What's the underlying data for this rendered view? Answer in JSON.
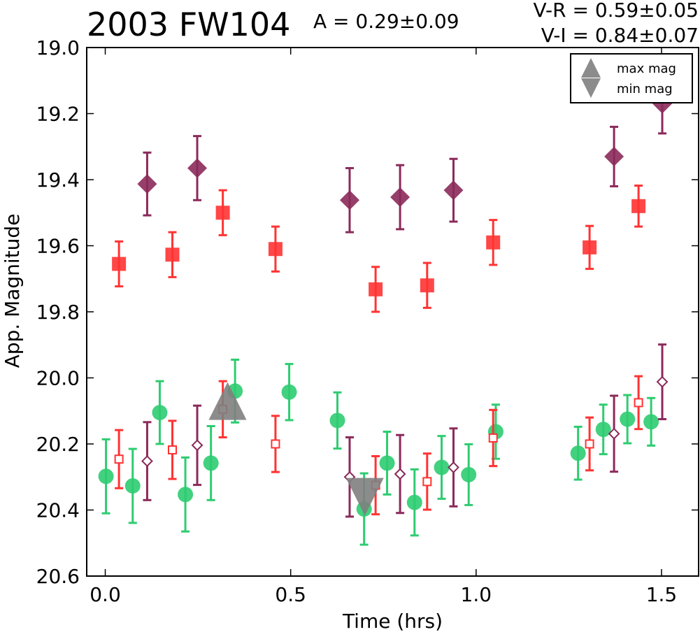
{
  "chart_data": {
    "type": "scatter",
    "title": "2003 FW104",
    "amplitude_label": "A  = 0.29±0.09",
    "colors_label": [
      "V-R = 0.59±0.05",
      "V-I  = 0.84±0.07"
    ],
    "xlabel": "Time (hrs)",
    "ylabel": "App. Magnitude",
    "xlim": [
      -0.05,
      1.6
    ],
    "ylim": [
      19.0,
      20.6
    ],
    "y_inverted": true,
    "grid": false,
    "xticks": [
      0.0,
      0.5,
      1.0,
      1.5
    ],
    "xtick_labels": [
      "0.0",
      "0.5",
      "1.0",
      "1.5"
    ],
    "yticks": [
      19.0,
      19.2,
      19.4,
      19.6,
      19.8,
      20.0,
      20.2,
      20.4,
      20.6
    ],
    "ytick_labels": [
      "19.0",
      "19.2",
      "19.4",
      "19.6",
      "19.8",
      "20.0",
      "20.2",
      "20.4",
      "20.6"
    ],
    "legend": {
      "placement": "top-right",
      "entries": [
        {
          "label": "max mag",
          "marker": "triangle-up",
          "color": "#7f7f7f"
        },
        {
          "label": "min mag",
          "marker": "triangle-down",
          "color": "#7f7f7f"
        }
      ]
    },
    "series": [
      {
        "marker": "square",
        "filled": true,
        "color": "#ff3333",
        "points": [
          {
            "x": 0.037,
            "y": 19.655,
            "err": 0.068
          },
          {
            "x": 0.181,
            "y": 19.627,
            "err": 0.068
          },
          {
            "x": 0.317,
            "y": 19.5,
            "err": 0.068
          },
          {
            "x": 0.459,
            "y": 19.61,
            "err": 0.068
          },
          {
            "x": 0.729,
            "y": 19.732,
            "err": 0.068
          },
          {
            "x": 0.868,
            "y": 19.72,
            "err": 0.068
          },
          {
            "x": 1.046,
            "y": 19.59,
            "err": 0.068
          },
          {
            "x": 1.306,
            "y": 19.605,
            "err": 0.065
          },
          {
            "x": 1.438,
            "y": 19.48,
            "err": 0.062
          }
        ]
      },
      {
        "marker": "diamond",
        "filled": true,
        "color": "#8b2a5a",
        "points": [
          {
            "x": 0.113,
            "y": 19.413,
            "err": 0.095
          },
          {
            "x": 0.248,
            "y": 19.365,
            "err": 0.097
          },
          {
            "x": 0.659,
            "y": 19.462,
            "err": 0.097
          },
          {
            "x": 0.795,
            "y": 19.453,
            "err": 0.097
          },
          {
            "x": 0.939,
            "y": 19.432,
            "err": 0.095
          },
          {
            "x": 1.372,
            "y": 19.33,
            "err": 0.09
          },
          {
            "x": 1.502,
            "y": 19.17,
            "err": 0.09
          }
        ]
      },
      {
        "marker": "circle",
        "filled": true,
        "color": "#2ecc71",
        "points": [
          {
            "x": 0.002,
            "y": 20.298,
            "err": 0.112
          },
          {
            "x": 0.074,
            "y": 20.327,
            "err": 0.112
          },
          {
            "x": 0.147,
            "y": 20.105,
            "err": 0.095
          },
          {
            "x": 0.216,
            "y": 20.353,
            "err": 0.112
          },
          {
            "x": 0.285,
            "y": 20.258,
            "err": 0.112
          },
          {
            "x": 0.35,
            "y": 20.04,
            "err": 0.095
          },
          {
            "x": 0.496,
            "y": 20.043,
            "err": 0.085
          },
          {
            "x": 0.626,
            "y": 20.129,
            "err": 0.085
          },
          {
            "x": 0.698,
            "y": 20.397,
            "err": 0.108
          },
          {
            "x": 0.76,
            "y": 20.258,
            "err": 0.095
          },
          {
            "x": 0.834,
            "y": 20.377,
            "err": 0.1
          },
          {
            "x": 0.907,
            "y": 20.271,
            "err": 0.095
          },
          {
            "x": 0.98,
            "y": 20.293,
            "err": 0.092
          },
          {
            "x": 1.053,
            "y": 20.163,
            "err": 0.082
          },
          {
            "x": 1.275,
            "y": 20.228,
            "err": 0.08
          },
          {
            "x": 1.343,
            "y": 20.156,
            "err": 0.075
          },
          {
            "x": 1.408,
            "y": 20.125,
            "err": 0.073
          },
          {
            "x": 1.472,
            "y": 20.133,
            "err": 0.072
          }
        ]
      },
      {
        "marker": "square",
        "filled": false,
        "color": "#ff3333",
        "points": [
          {
            "x": 0.037,
            "y": 20.246,
            "err": 0.088
          },
          {
            "x": 0.181,
            "y": 20.218,
            "err": 0.088
          },
          {
            "x": 0.317,
            "y": 20.095,
            "err": 0.085
          },
          {
            "x": 0.459,
            "y": 20.2,
            "err": 0.085
          },
          {
            "x": 0.729,
            "y": 20.325,
            "err": 0.088
          },
          {
            "x": 0.868,
            "y": 20.314,
            "err": 0.085
          },
          {
            "x": 1.046,
            "y": 20.182,
            "err": 0.085
          },
          {
            "x": 1.306,
            "y": 20.2,
            "err": 0.08
          },
          {
            "x": 1.438,
            "y": 20.075,
            "err": 0.08
          }
        ]
      },
      {
        "marker": "diamond",
        "filled": false,
        "color": "#8b2a5a",
        "points": [
          {
            "x": 0.113,
            "y": 20.252,
            "err": 0.118
          },
          {
            "x": 0.248,
            "y": 20.204,
            "err": 0.12
          },
          {
            "x": 0.659,
            "y": 20.3,
            "err": 0.12
          },
          {
            "x": 0.795,
            "y": 20.291,
            "err": 0.118
          },
          {
            "x": 0.939,
            "y": 20.271,
            "err": 0.118
          },
          {
            "x": 1.372,
            "y": 20.169,
            "err": 0.115
          },
          {
            "x": 1.502,
            "y": 20.012,
            "err": 0.113
          }
        ]
      }
    ],
    "extrema": [
      {
        "label": "max mag",
        "marker": "triangle-up",
        "x": 0.33,
        "y": 20.07,
        "color": "#7f7f7f"
      },
      {
        "label": "min mag",
        "marker": "triangle-down",
        "x": 0.7,
        "y": 20.36,
        "color": "#7f7f7f"
      }
    ]
  }
}
